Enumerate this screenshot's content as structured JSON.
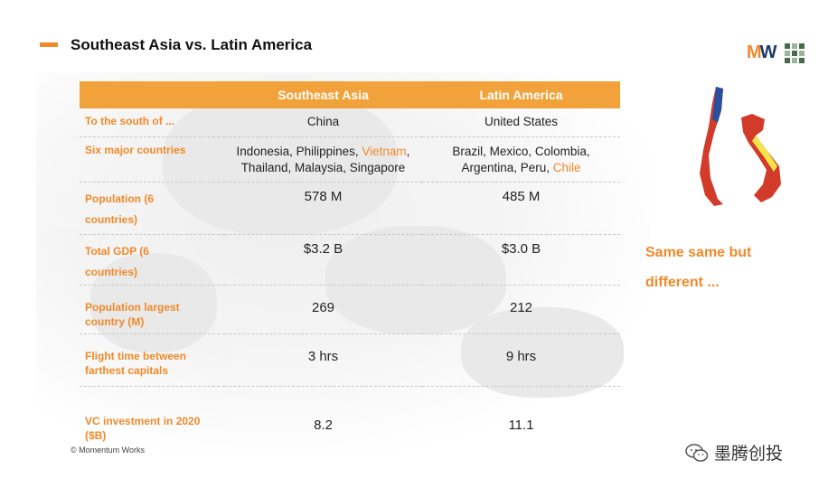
{
  "header": {
    "title": "Southeast Asia vs. Latin America"
  },
  "logo": {
    "mark_m": "M",
    "mark_w": "W"
  },
  "table": {
    "columns": [
      "",
      "Southeast Asia",
      "Latin America"
    ],
    "rows": [
      {
        "label": "To the south of ...",
        "sea": "China",
        "latam": "United States"
      },
      {
        "label": "Six major countries",
        "sea_a": "Indonesia, Philippines, ",
        "sea_hl": "Vietnam",
        "sea_b": ",",
        "sea_line2": "Thailand, Malaysia, Singapore",
        "latam_a": "Brazil, Mexico, Colombia,",
        "latam_line2": "Argentina, Peru, ",
        "latam_hl": "Chile"
      },
      {
        "label_l1": "Population (6",
        "label_l2": "countries)",
        "sea": "578 M",
        "latam": "485 M"
      },
      {
        "label_l1": "Total GDP (6",
        "label_l2": "countries)",
        "sea": "$3.2 B",
        "latam": "$3.0 B"
      },
      {
        "label_l1": "Population largest",
        "label_l2": "country (M)",
        "sea": "269",
        "latam": "212"
      },
      {
        "label_l1": "Flight time between",
        "label_l2": "farthest capitals",
        "sea": "3 hrs",
        "latam": "9 hrs"
      },
      {
        "label_l1": "VC investment in 2020",
        "label_l2": "($B)",
        "sea": "8.2",
        "latam": "11.1"
      }
    ]
  },
  "side": {
    "line1": "Same same but",
    "line2": "different ..."
  },
  "footer": {
    "copyright": "© Momentum Works"
  },
  "watermark": {
    "text": "墨腾创投"
  },
  "colors": {
    "accent": "#f0892a",
    "header_bg": "#f2a23a",
    "chile_blue": "#2a4fa0",
    "map_red": "#d23a2a",
    "map_yellow": "#f5e34a"
  }
}
